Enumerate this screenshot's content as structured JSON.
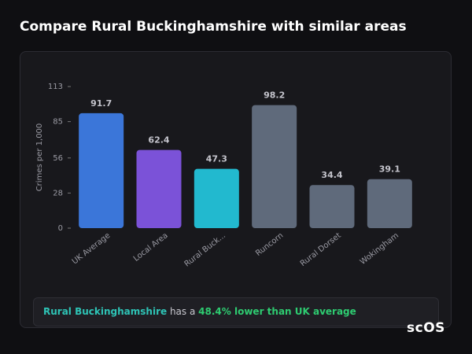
{
  "title": "Compare Rural Buckinghamshire with similar areas",
  "chart_data": {
    "type": "bar",
    "y_label": "Crimes per 1,000",
    "categories": [
      "UK Average",
      "Local Area",
      "Rural Buck...",
      "Runcorn",
      "Rural Dorset",
      "Wokingham"
    ],
    "values": [
      91.7,
      62.4,
      47.3,
      98.2,
      34.4,
      39.1
    ],
    "colors": [
      "#3b76d9",
      "#7b52d8",
      "#22b9cf",
      "#5f6a7b",
      "#5f6a7b",
      "#5f6a7b"
    ],
    "ylim": [
      0,
      113
    ],
    "yticks": [
      0,
      28,
      56,
      85,
      113
    ],
    "grid": false
  },
  "summary": {
    "area": "Rural Buckinghamshire",
    "middle": "has a",
    "comparison": "48.4% lower than UK average"
  },
  "logo": "scOS"
}
